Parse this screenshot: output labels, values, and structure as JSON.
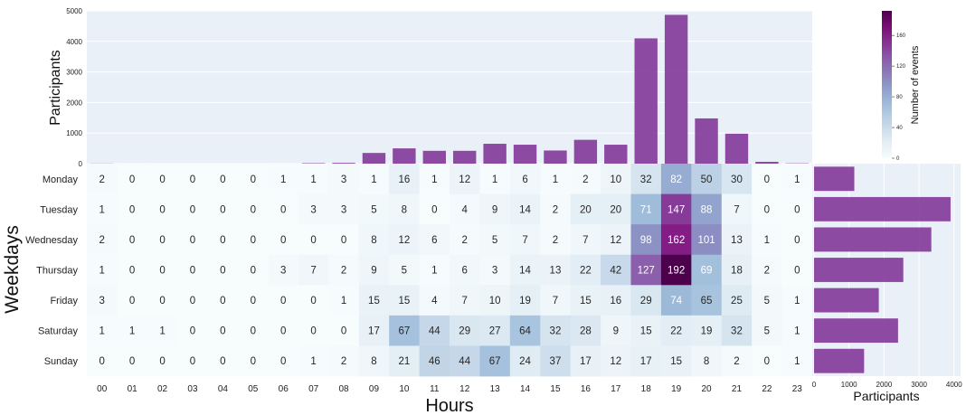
{
  "chart_data": [
    {
      "type": "bar",
      "ylabel": "Participants",
      "ylim": [
        0,
        5000
      ],
      "yticks": [
        0,
        1000,
        2000,
        3000,
        4000,
        5000
      ],
      "categories": [
        "00",
        "01",
        "02",
        "03",
        "04",
        "05",
        "06",
        "07",
        "08",
        "09",
        "10",
        "11",
        "12",
        "13",
        "14",
        "15",
        "16",
        "17",
        "18",
        "19",
        "20",
        "21",
        "22",
        "23"
      ],
      "values": [
        5,
        0,
        0,
        0,
        0,
        0,
        0,
        15,
        25,
        350,
        500,
        420,
        420,
        650,
        620,
        430,
        780,
        620,
        4100,
        4870,
        1480,
        980,
        60,
        10
      ],
      "color": "#7b2d93",
      "grid": true
    },
    {
      "type": "heatmap",
      "xlabel": "Hours",
      "ylabel": "Weekdays",
      "x": [
        "00",
        "01",
        "02",
        "03",
        "04",
        "05",
        "06",
        "07",
        "08",
        "09",
        "10",
        "11",
        "12",
        "13",
        "14",
        "15",
        "16",
        "17",
        "18",
        "19",
        "20",
        "21",
        "22",
        "23"
      ],
      "y": [
        "Monday",
        "Tuesday",
        "Wednesday",
        "Thursday",
        "Friday",
        "Saturday",
        "Sunday"
      ],
      "values": [
        [
          2,
          0,
          0,
          0,
          0,
          0,
          1,
          1,
          3,
          1,
          16,
          1,
          12,
          1,
          6,
          1,
          2,
          10,
          32,
          82,
          50,
          30,
          0,
          1
        ],
        [
          1,
          0,
          0,
          0,
          0,
          0,
          0,
          3,
          3,
          5,
          8,
          0,
          4,
          9,
          14,
          2,
          20,
          20,
          71,
          147,
          88,
          7,
          0,
          0
        ],
        [
          2,
          0,
          0,
          0,
          0,
          0,
          0,
          0,
          0,
          8,
          12,
          6,
          2,
          5,
          7,
          2,
          7,
          12,
          98,
          162,
          101,
          13,
          1,
          0
        ],
        [
          1,
          0,
          0,
          0,
          0,
          0,
          3,
          7,
          2,
          9,
          5,
          1,
          6,
          3,
          14,
          13,
          22,
          42,
          127,
          192,
          69,
          18,
          2,
          0
        ],
        [
          3,
          0,
          0,
          0,
          0,
          0,
          0,
          0,
          1,
          15,
          15,
          4,
          7,
          10,
          19,
          7,
          15,
          16,
          29,
          74,
          65,
          25,
          5,
          1
        ],
        [
          1,
          1,
          1,
          0,
          0,
          0,
          0,
          0,
          0,
          17,
          67,
          44,
          29,
          27,
          64,
          32,
          28,
          9,
          15,
          22,
          19,
          32,
          5,
          1
        ],
        [
          0,
          0,
          0,
          0,
          0,
          0,
          0,
          1,
          2,
          8,
          21,
          46,
          44,
          67,
          24,
          37,
          17,
          12,
          17,
          15,
          8,
          2,
          0,
          1
        ]
      ],
      "colormap": "BuPu",
      "vmin": 0,
      "vmax": 192
    },
    {
      "type": "bar",
      "orientation": "horizontal",
      "xlabel": "Participants",
      "xlim": [
        0,
        4000
      ],
      "xticks": [
        0,
        1000,
        2000,
        3000,
        4000
      ],
      "categories": [
        "Monday",
        "Tuesday",
        "Wednesday",
        "Thursday",
        "Friday",
        "Saturday",
        "Sunday"
      ],
      "values": [
        1150,
        3900,
        3350,
        2550,
        1850,
        2400,
        1430
      ],
      "color": "#7b2d93",
      "grid": true
    }
  ],
  "colorbar": {
    "label": "Number of events",
    "ticks": [
      0,
      40,
      80,
      120,
      160
    ],
    "range": [
      0,
      192
    ]
  },
  "colors": {
    "bar": "#7b2d93",
    "panel_bg": "#eaf0f8"
  }
}
